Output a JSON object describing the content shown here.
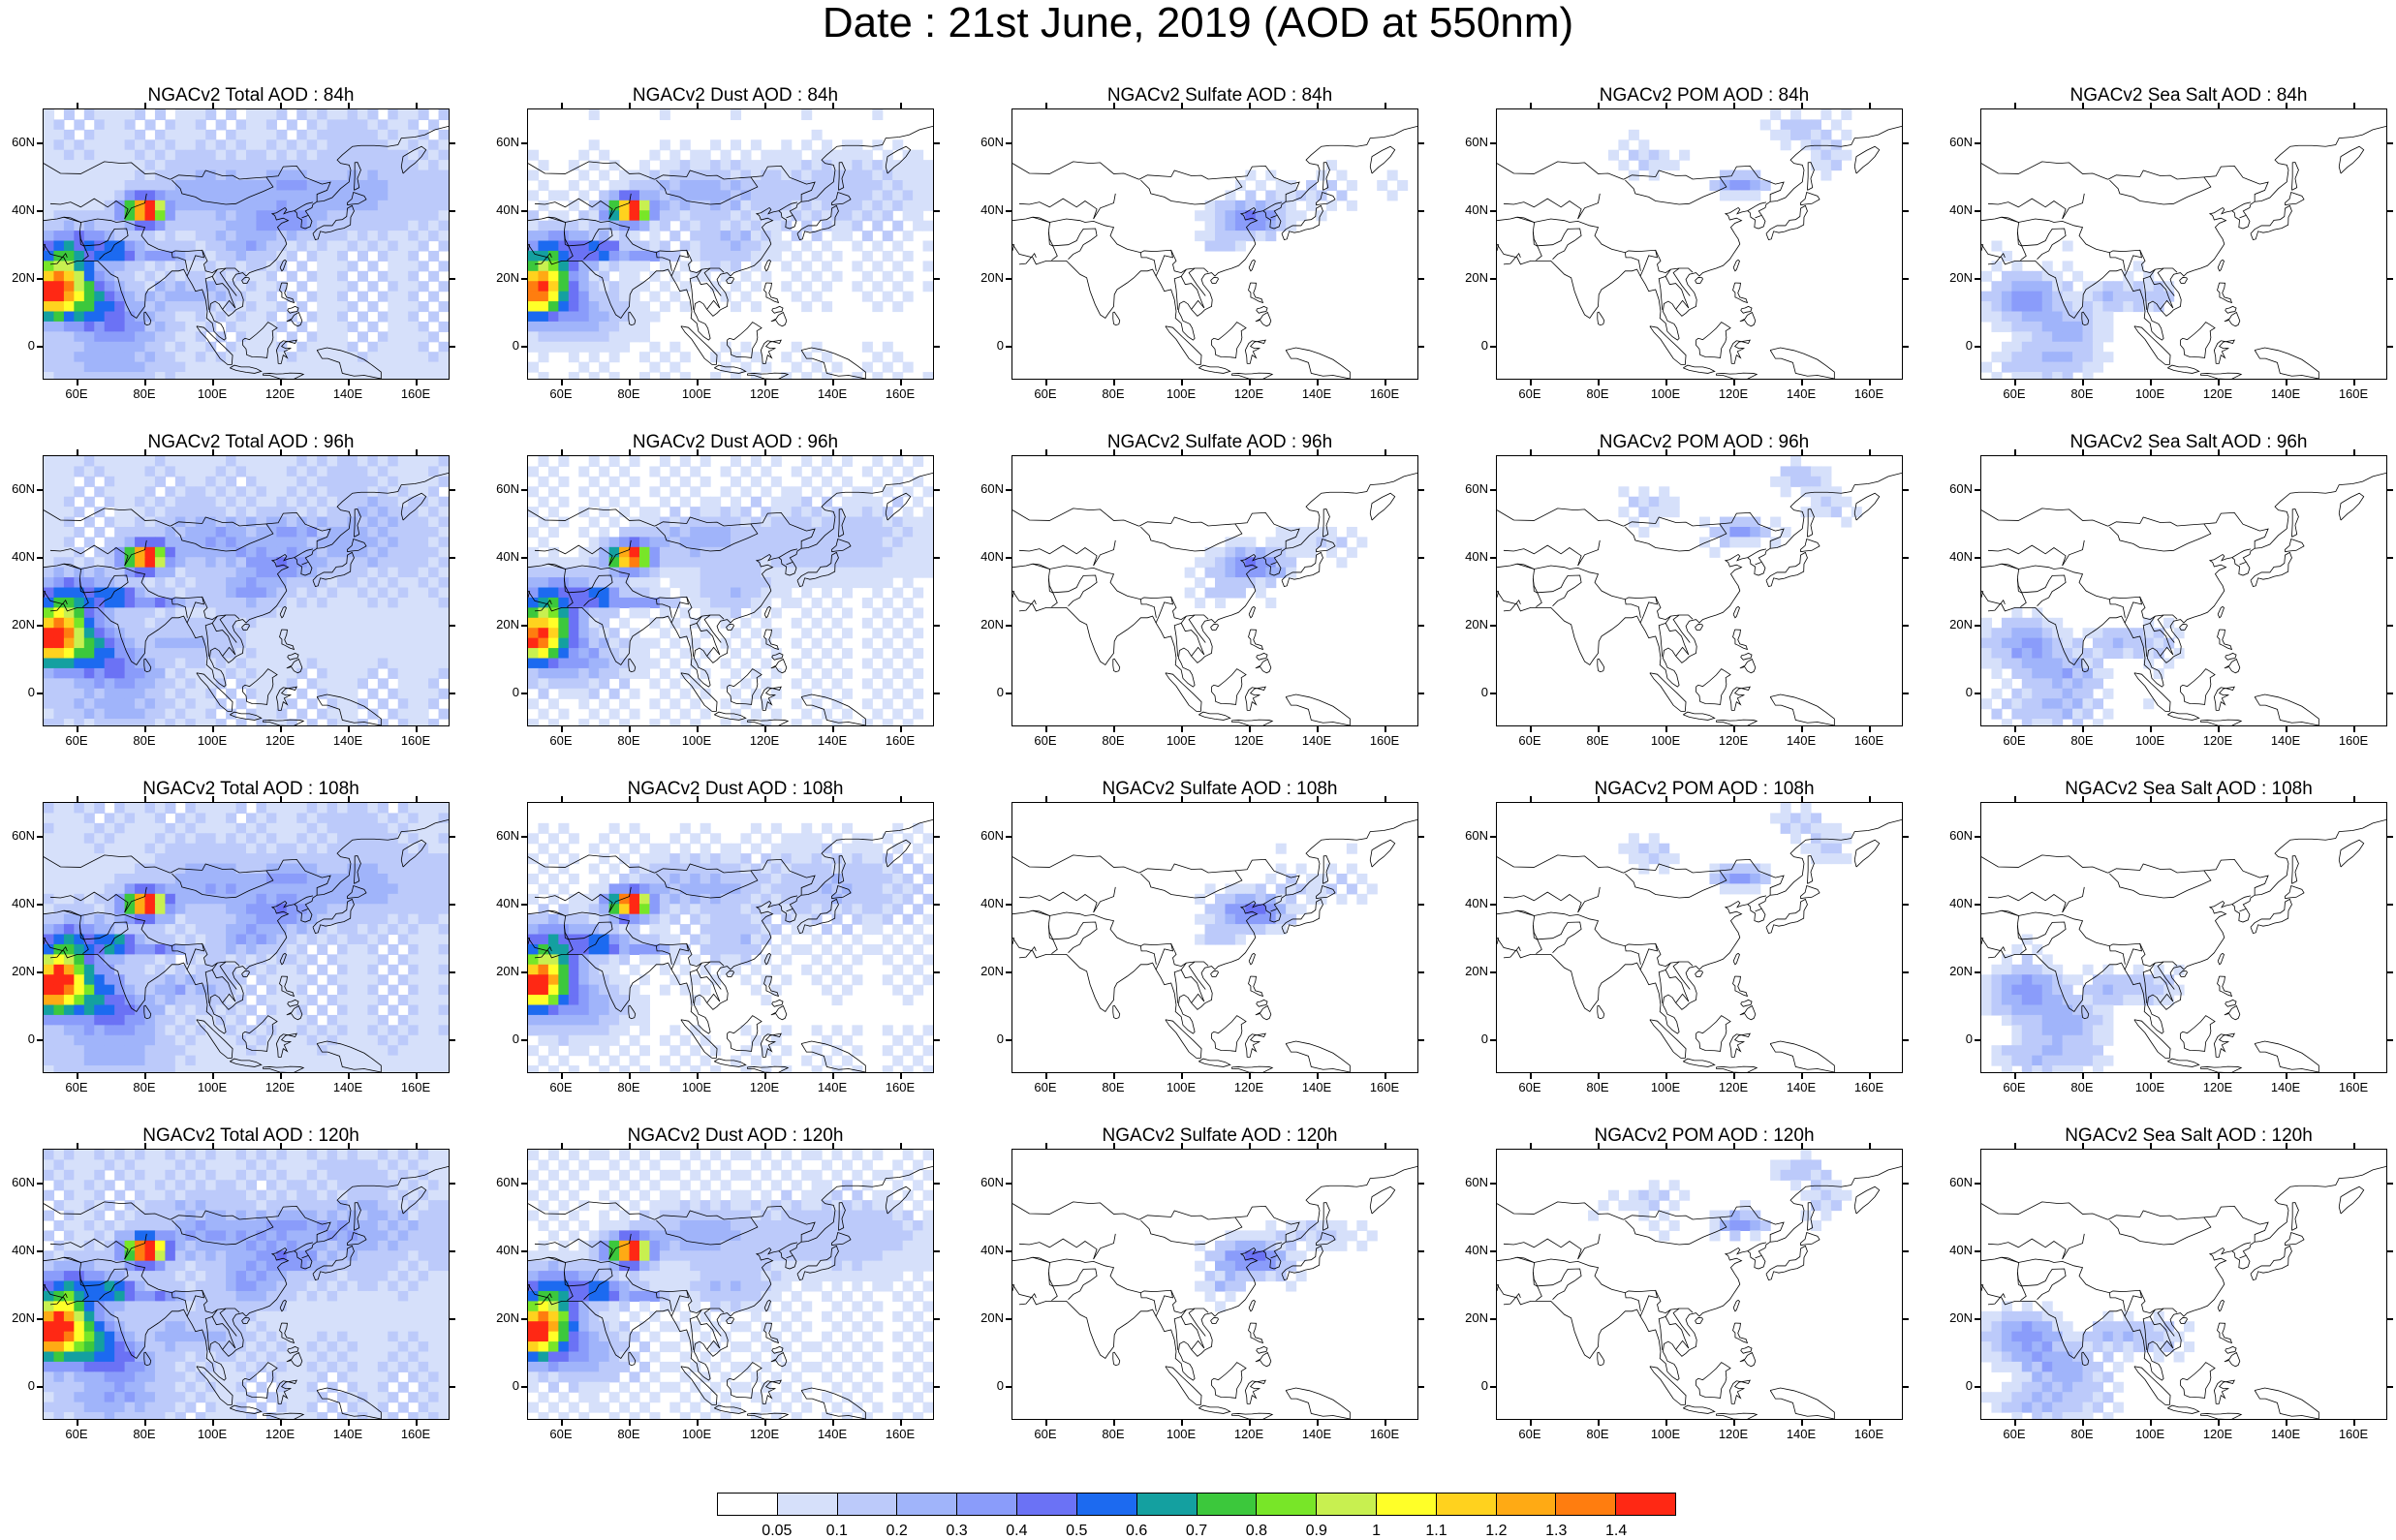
{
  "title": "Date : 21st June, 2019 (AOD at 550nm)",
  "axes": {
    "lon_ticks": [
      "60E",
      "80E",
      "100E",
      "120E",
      "140E",
      "160E"
    ],
    "lat_ticks": [
      "60N",
      "40N",
      "20N",
      "0"
    ],
    "lon_range": [
      50,
      170
    ],
    "lat_range": [
      -10,
      70
    ]
  },
  "panels": [
    {
      "title": "NGACv2 Total AOD : 84h",
      "field": "total",
      "lead": 84
    },
    {
      "title": "NGACv2 Dust AOD : 84h",
      "field": "dust",
      "lead": 84
    },
    {
      "title": "NGACv2 Sulfate AOD : 84h",
      "field": "sulfate",
      "lead": 84
    },
    {
      "title": "NGACv2 POM AOD : 84h",
      "field": "pom",
      "lead": 84
    },
    {
      "title": "NGACv2 Sea Salt AOD : 84h",
      "field": "seasalt",
      "lead": 84
    },
    {
      "title": "NGACv2 Total AOD : 96h",
      "field": "total",
      "lead": 96
    },
    {
      "title": "NGACv2 Dust AOD : 96h",
      "field": "dust",
      "lead": 96
    },
    {
      "title": "NGACv2 Sulfate AOD : 96h",
      "field": "sulfate",
      "lead": 96
    },
    {
      "title": "NGACv2 POM AOD : 96h",
      "field": "pom",
      "lead": 96
    },
    {
      "title": "NGACv2 Sea Salt AOD : 96h",
      "field": "seasalt",
      "lead": 96
    },
    {
      "title": "NGACv2 Total AOD : 108h",
      "field": "total",
      "lead": 108
    },
    {
      "title": "NGACv2 Dust AOD : 108h",
      "field": "dust",
      "lead": 108
    },
    {
      "title": "NGACv2 Sulfate AOD : 108h",
      "field": "sulfate",
      "lead": 108
    },
    {
      "title": "NGACv2 POM AOD : 108h",
      "field": "pom",
      "lead": 108
    },
    {
      "title": "NGACv2 Sea Salt AOD : 108h",
      "field": "seasalt",
      "lead": 108
    },
    {
      "title": "NGACv2 Total AOD : 120h",
      "field": "total",
      "lead": 120
    },
    {
      "title": "NGACv2 Dust AOD : 120h",
      "field": "dust",
      "lead": 120
    },
    {
      "title": "NGACv2 Sulfate AOD : 120h",
      "field": "sulfate",
      "lead": 120
    },
    {
      "title": "NGACv2 POM AOD : 120h",
      "field": "pom",
      "lead": 120
    },
    {
      "title": "NGACv2 Sea Salt  AOD : 120h",
      "field": "seasalt",
      "lead": 120
    }
  ],
  "colorbar": {
    "colors": [
      "#ffffff",
      "#d6e0fa",
      "#bccafa",
      "#a0b4fa",
      "#8a9cfa",
      "#6b72f5",
      "#1c6af0",
      "#14a0a0",
      "#3cc83c",
      "#78e628",
      "#c8f050",
      "#ffff28",
      "#ffd21e",
      "#ffaa14",
      "#ff7d0f",
      "#ff2814"
    ],
    "levels": [
      "0.05",
      "0.1",
      "0.2",
      "0.3",
      "0.4",
      "0.5",
      "0.6",
      "0.7",
      "0.8",
      "0.9",
      "1",
      "1.1",
      "1.2",
      "1.3",
      "1.4"
    ]
  }
}
